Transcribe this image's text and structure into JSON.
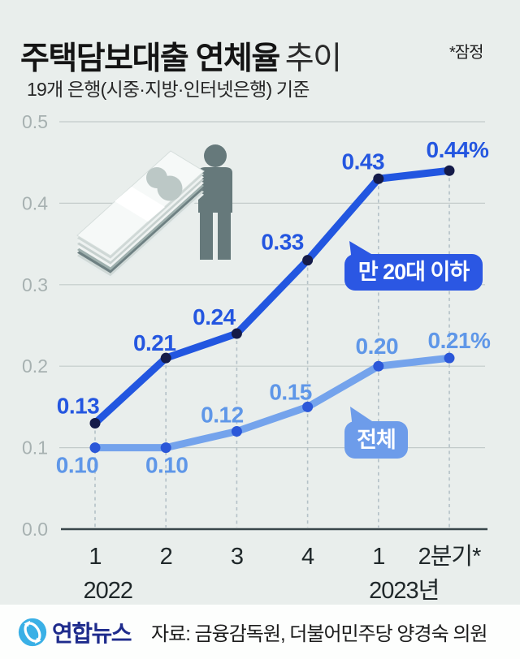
{
  "header": {
    "title_strong": "주택담보대출 연체율",
    "title_light": "추이",
    "provisional_note": "*잠정",
    "subtitle": "19개 은행(시중·지방·인터넷은행) 기준"
  },
  "chart_data": {
    "type": "line",
    "title": "주택담보대출 연체율 추이",
    "unit": "%",
    "categories": [
      "1",
      "2",
      "3",
      "4",
      "1",
      "2분기*"
    ],
    "x_group_labels": [
      {
        "label": "2022",
        "index": 0.18
      },
      {
        "label": "2023년",
        "index": 4.36
      }
    ],
    "ylim": [
      0.0,
      0.5
    ],
    "yticks": [
      0.5,
      0.4,
      0.3,
      0.2,
      0.1,
      0.0
    ],
    "grid": true,
    "legend_position": "callouts-on-lines",
    "series": [
      {
        "key": "under20s",
        "name": "만 20대 이하",
        "values": [
          0.13,
          0.21,
          0.24,
          0.33,
          0.43,
          0.44
        ],
        "point_labels": [
          "0.13",
          "0.21",
          "0.24",
          "0.33",
          "0.43",
          "0.44%"
        ],
        "line_color": "#2256e0",
        "point_color": "#151b49",
        "label_color": "#2456e0",
        "callout": {
          "text": "만 20대 이하",
          "bg": "#2b57e3",
          "text_color": "#ffffff"
        }
      },
      {
        "key": "total",
        "name": "전체",
        "values": [
          0.1,
          0.1,
          0.12,
          0.15,
          0.2,
          0.21
        ],
        "point_labels": [
          "0.10",
          "0.10",
          "0.12",
          "0.15",
          "0.20",
          "0.21%"
        ],
        "line_color": "#74a3ec",
        "point_color": "#2b57d8",
        "label_color": "#5f97e8",
        "callout": {
          "text": "전체",
          "bg": "#6d9cea",
          "text_color": "#ffffff"
        }
      }
    ],
    "axis_colors": {
      "tick_label": "#a7b1b1",
      "grid": "#c3cbca",
      "baseline": "#39464a",
      "dashed": "#b4c1c7",
      "x_label": "#20282a"
    }
  },
  "footer": {
    "logo_text": "연합뉴스",
    "source": "자료: 금융감독원, 더불어민주당 양경숙 의원",
    "logo_color": "#3ab0e6",
    "logo_text_color": "#1e2b8c"
  }
}
